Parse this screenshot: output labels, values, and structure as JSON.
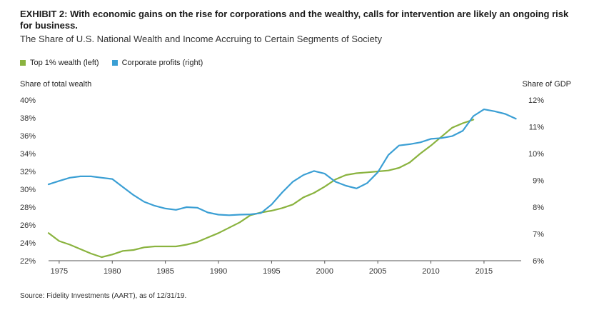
{
  "header": {
    "title": "EXHIBIT 2: With economic gains on the rise for corporations and the wealthy, calls for intervention are likely an ongoing risk for business.",
    "subtitle": "The Share of U.S. National Wealth and Income Accruing to Certain Segments of Society"
  },
  "footer": {
    "source": "Source: Fidelity Investments (AART), as of 12/31/19."
  },
  "chart_data": {
    "type": "line",
    "ylabel_left": "Share of total wealth",
    "ylabel_right": "Share of GDP",
    "xlim": [
      1974,
      2018.5
    ],
    "ylim_left": [
      22,
      40
    ],
    "ylim_right": [
      6,
      12
    ],
    "x_ticks": [
      "1975",
      "1980",
      "1985",
      "1990",
      "1995",
      "2000",
      "2005",
      "2010",
      "2015"
    ],
    "y_ticks_left": [
      "22%",
      "24%",
      "26%",
      "28%",
      "30%",
      "32%",
      "34%",
      "36%",
      "38%",
      "40%"
    ],
    "y_ticks_right": [
      "6%",
      "7%",
      "8%",
      "9%",
      "10%",
      "11%",
      "12%"
    ],
    "grid": false,
    "legend_position": "top-left",
    "series": [
      {
        "name": "Top 1% wealth (left)",
        "axis": "left",
        "color": "#8ab33f",
        "x": [
          1974,
          1975,
          1976,
          1977,
          1978,
          1979,
          1980,
          1981,
          1982,
          1983,
          1984,
          1985,
          1986,
          1987,
          1988,
          1989,
          1990,
          1991,
          1992,
          1993,
          1994,
          1995,
          1996,
          1997,
          1998,
          1999,
          2000,
          2001,
          2002,
          2003,
          2004,
          2005,
          2006,
          2007,
          2008,
          2009,
          2010,
          2011,
          2012,
          2013,
          2014
        ],
        "y": [
          25.1,
          24.2,
          23.8,
          23.3,
          22.8,
          22.4,
          22.7,
          23.1,
          23.2,
          23.5,
          23.6,
          23.6,
          23.6,
          23.8,
          24.1,
          24.6,
          25.1,
          25.7,
          26.3,
          27.1,
          27.4,
          27.6,
          27.9,
          28.3,
          29.1,
          29.6,
          30.3,
          31.1,
          31.6,
          31.8,
          31.9,
          32.0,
          32.1,
          32.4,
          33.0,
          34.0,
          34.9,
          35.9,
          36.9,
          37.4,
          37.8
        ]
      },
      {
        "name": "Corporate profits (right)",
        "axis": "right",
        "color": "#3b9fd4",
        "x": [
          1974,
          1975,
          1976,
          1977,
          1978,
          1979,
          1980,
          1981,
          1982,
          1983,
          1984,
          1985,
          1986,
          1987,
          1988,
          1989,
          1990,
          1991,
          1992,
          1993,
          1994,
          1995,
          1996,
          1997,
          1998,
          1999,
          2000,
          2001,
          2002,
          2003,
          2004,
          2005,
          2006,
          2007,
          2008,
          2009,
          2010,
          2011,
          2012,
          2013,
          2014,
          2015,
          2016,
          2017,
          2018
        ],
        "y": [
          8.85,
          8.98,
          9.1,
          9.15,
          9.15,
          9.1,
          9.05,
          8.75,
          8.45,
          8.2,
          8.05,
          7.95,
          7.9,
          8.0,
          7.98,
          7.8,
          7.72,
          7.7,
          7.72,
          7.73,
          7.78,
          8.1,
          8.55,
          8.95,
          9.2,
          9.35,
          9.25,
          8.95,
          8.8,
          8.7,
          8.9,
          9.3,
          9.95,
          10.3,
          10.35,
          10.42,
          10.55,
          10.58,
          10.65,
          10.85,
          11.4,
          11.65,
          11.58,
          11.48,
          11.3
        ]
      }
    ]
  }
}
